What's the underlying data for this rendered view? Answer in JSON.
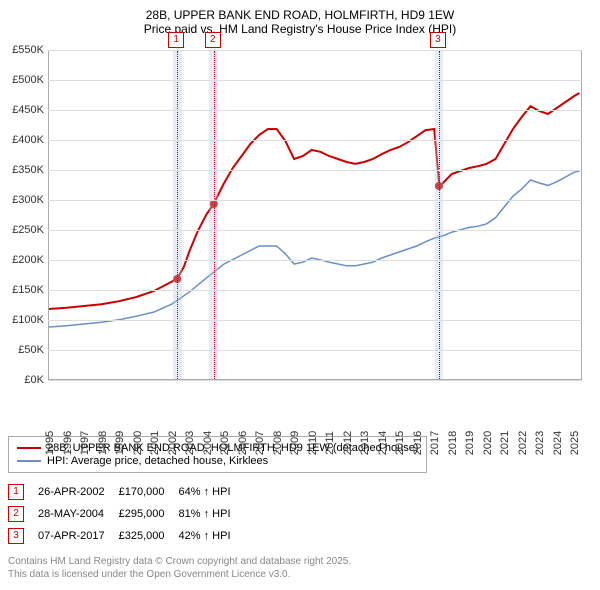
{
  "title_line1": "28B, UPPER BANK END ROAD, HOLMFIRTH, HD9 1EW",
  "title_line2": "Price paid vs. HM Land Registry's House Price Index (HPI)",
  "chart": {
    "type": "line",
    "x_start_year": 1995,
    "x_end_year": 2025.5,
    "y_min": 0,
    "y_max": 550,
    "y_tick_step": 50,
    "y_tick_suffix": "K",
    "y_tick_prefix": "£",
    "grid_color": "#dddddd",
    "axis_color": "#aaaaaa",
    "xtick_years": [
      1995,
      1996,
      1997,
      1998,
      1999,
      2000,
      2001,
      2002,
      2003,
      2004,
      2005,
      2006,
      2007,
      2008,
      2009,
      2010,
      2011,
      2012,
      2013,
      2014,
      2015,
      2016,
      2017,
      2018,
      2019,
      2020,
      2021,
      2022,
      2023,
      2024,
      2025
    ],
    "series": [
      {
        "id": "property",
        "label": "28B, UPPER BANK END ROAD, HOLMFIRTH, HD9 1EW (detached house)",
        "color": "#cc0000",
        "width": 2,
        "points": [
          [
            1995,
            120
          ],
          [
            1996,
            122
          ],
          [
            1997,
            125
          ],
          [
            1998,
            128
          ],
          [
            1999,
            133
          ],
          [
            2000,
            140
          ],
          [
            2001,
            150
          ],
          [
            2002.3,
            170
          ],
          [
            2002.7,
            190
          ],
          [
            2003,
            215
          ],
          [
            2003.5,
            250
          ],
          [
            2004,
            278
          ],
          [
            2004.4,
            295
          ],
          [
            2005,
            330
          ],
          [
            2005.5,
            355
          ],
          [
            2006,
            375
          ],
          [
            2006.5,
            395
          ],
          [
            2007,
            410
          ],
          [
            2007.5,
            420
          ],
          [
            2008,
            420
          ],
          [
            2008.5,
            400
          ],
          [
            2009,
            370
          ],
          [
            2009.5,
            375
          ],
          [
            2010,
            385
          ],
          [
            2010.5,
            382
          ],
          [
            2011,
            375
          ],
          [
            2011.5,
            370
          ],
          [
            2012,
            365
          ],
          [
            2012.5,
            362
          ],
          [
            2013,
            365
          ],
          [
            2013.5,
            370
          ],
          [
            2014,
            378
          ],
          [
            2014.5,
            385
          ],
          [
            2015,
            390
          ],
          [
            2015.5,
            398
          ],
          [
            2016,
            408
          ],
          [
            2016.5,
            418
          ],
          [
            2017,
            420
          ],
          [
            2017.3,
            325
          ],
          [
            2017.5,
            330
          ],
          [
            2018,
            345
          ],
          [
            2018.5,
            350
          ],
          [
            2019,
            355
          ],
          [
            2019.5,
            358
          ],
          [
            2020,
            362
          ],
          [
            2020.5,
            370
          ],
          [
            2021,
            395
          ],
          [
            2021.5,
            420
          ],
          [
            2022,
            440
          ],
          [
            2022.5,
            458
          ],
          [
            2023,
            450
          ],
          [
            2023.5,
            445
          ],
          [
            2024,
            455
          ],
          [
            2024.5,
            465
          ],
          [
            2025,
            475
          ],
          [
            2025.3,
            480
          ]
        ]
      },
      {
        "id": "hpi",
        "label": "HPI: Average price, detached house, Kirklees",
        "color": "#6a8fc5",
        "width": 1.5,
        "points": [
          [
            1995,
            90
          ],
          [
            1996,
            92
          ],
          [
            1997,
            95
          ],
          [
            1998,
            98
          ],
          [
            1999,
            102
          ],
          [
            2000,
            108
          ],
          [
            2001,
            115
          ],
          [
            2002,
            128
          ],
          [
            2003,
            148
          ],
          [
            2004,
            172
          ],
          [
            2005,
            195
          ],
          [
            2006,
            210
          ],
          [
            2007,
            225
          ],
          [
            2008,
            225
          ],
          [
            2008.5,
            212
          ],
          [
            2009,
            195
          ],
          [
            2009.5,
            198
          ],
          [
            2010,
            205
          ],
          [
            2010.5,
            202
          ],
          [
            2011,
            198
          ],
          [
            2011.5,
            195
          ],
          [
            2012,
            192
          ],
          [
            2012.5,
            192
          ],
          [
            2013,
            195
          ],
          [
            2013.5,
            198
          ],
          [
            2014,
            205
          ],
          [
            2014.5,
            210
          ],
          [
            2015,
            215
          ],
          [
            2015.5,
            220
          ],
          [
            2016,
            225
          ],
          [
            2016.5,
            232
          ],
          [
            2017,
            238
          ],
          [
            2017.5,
            242
          ],
          [
            2018,
            248
          ],
          [
            2018.5,
            252
          ],
          [
            2019,
            256
          ],
          [
            2019.5,
            258
          ],
          [
            2020,
            262
          ],
          [
            2020.5,
            272
          ],
          [
            2021,
            290
          ],
          [
            2021.5,
            308
          ],
          [
            2022,
            320
          ],
          [
            2022.5,
            335
          ],
          [
            2023,
            330
          ],
          [
            2023.5,
            326
          ],
          [
            2024,
            332
          ],
          [
            2024.5,
            340
          ],
          [
            2025,
            348
          ],
          [
            2025.3,
            350
          ]
        ]
      }
    ],
    "sale_events": [
      {
        "n": "1",
        "year": 2002.32,
        "date": "26-APR-2002",
        "price": "£170,000",
        "vs_hpi": "64% ↑ HPI",
        "value_k": 170
      },
      {
        "n": "2",
        "year": 2004.41,
        "date": "28-MAY-2004",
        "price": "£295,000",
        "vs_hpi": "81% ↑ HPI",
        "value_k": 295
      },
      {
        "n": "3",
        "year": 2017.27,
        "date": "07-APR-2017",
        "price": "£325,000",
        "vs_hpi": "42% ↑ HPI",
        "value_k": 325
      }
    ],
    "sale_band_halfwidth_years": 0.25,
    "sale_band_color": "rgba(180,200,230,0.35)",
    "sale_line_color": "#cc0000",
    "sale_box_border": "#cc0000"
  },
  "footer_line1": "Contains HM Land Registry data © Crown copyright and database right 2025.",
  "footer_line2": "This data is licensed under the Open Government Licence v3.0."
}
